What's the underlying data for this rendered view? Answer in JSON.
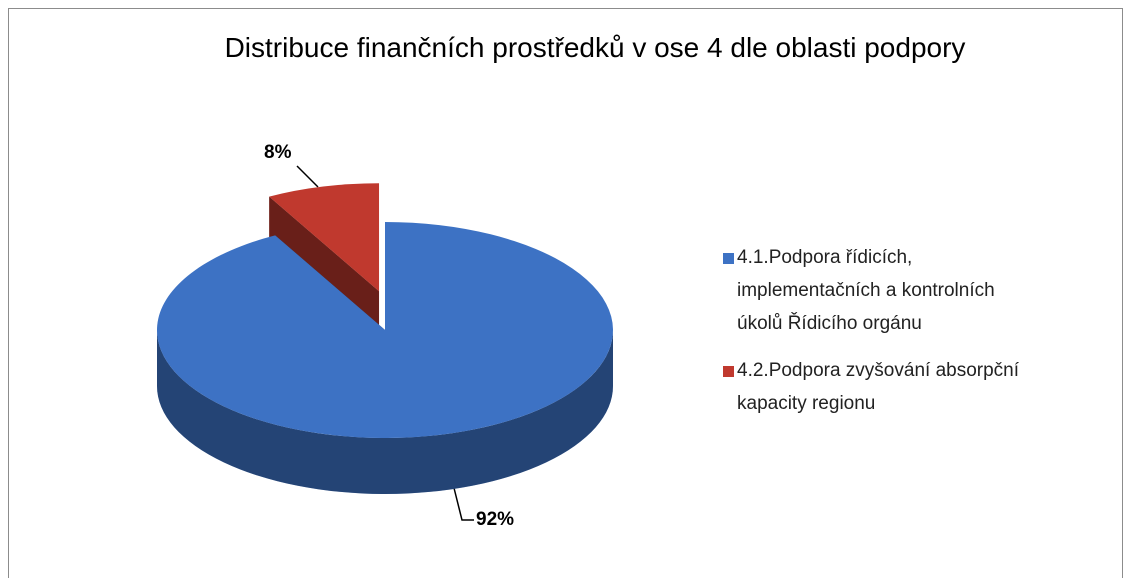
{
  "chart_data": {
    "type": "pie",
    "title": "Distribuce finančních prostředků v ose 4 dle oblasti podpory",
    "categories": [
      "4.1.Podpora řídicích, implementačních a kontrolních úkolů Řídicího orgánu",
      "4.2.Podpora zvyšování absorpční kapacity regionu"
    ],
    "values": [
      92,
      8
    ],
    "value_labels": [
      "92%",
      "8%"
    ],
    "colors": [
      "#3d72c4",
      "#c0392e"
    ],
    "exploded": [
      false,
      true
    ],
    "legend": "right"
  }
}
